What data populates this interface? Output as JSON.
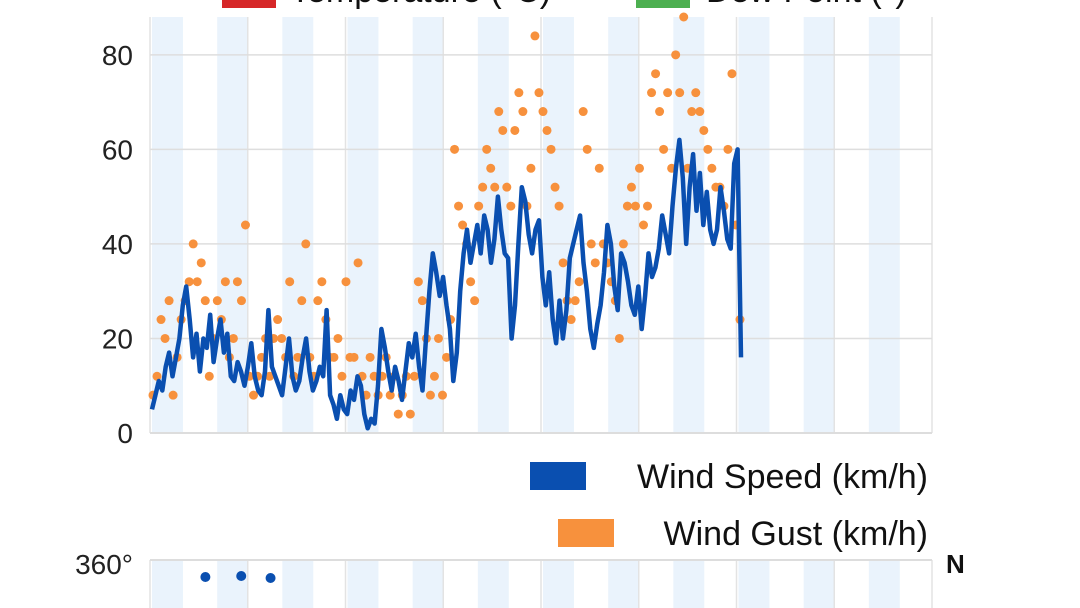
{
  "top_legend": [
    {
      "label": "Temperature (°C)",
      "color": "#d62728"
    },
    {
      "label": "Dew Point (°)",
      "color": "#4caf50"
    }
  ],
  "chart_data": [
    {
      "type": "line",
      "title": "",
      "xlabel": "",
      "ylabel": "",
      "ylim": [
        0,
        88
      ],
      "yticks": [
        0,
        20,
        40,
        60,
        80
      ],
      "grid": true,
      "legend_position": "bottom-right",
      "x_period_count": 24,
      "series": [
        {
          "name": "Wind Speed (km/h)",
          "color": "#0a4fb0",
          "style": "line",
          "values": [
            5,
            8,
            11,
            9,
            14,
            17,
            12,
            16,
            20,
            27,
            31,
            24,
            16,
            21,
            13,
            20,
            18,
            25,
            15,
            20,
            24,
            17,
            21,
            12,
            11,
            15,
            13,
            10,
            14,
            19,
            12,
            9,
            8,
            13,
            26,
            14,
            12,
            10,
            8,
            14,
            20,
            12,
            9,
            11,
            16,
            20,
            13,
            9,
            11,
            14,
            12,
            26,
            8,
            6,
            3,
            8,
            5,
            4,
            9,
            7,
            12,
            10,
            4,
            1,
            3,
            2,
            10,
            22,
            18,
            13,
            9,
            14,
            11,
            7,
            13,
            19,
            16,
            21,
            14,
            9,
            20,
            30,
            38,
            34,
            29,
            33,
            27,
            22,
            11,
            17,
            30,
            38,
            43,
            36,
            40,
            44,
            38,
            46,
            43,
            36,
            41,
            50,
            43,
            38,
            37,
            20,
            27,
            40,
            52,
            49,
            42,
            38,
            43,
            45,
            33,
            27,
            34,
            24,
            19,
            28,
            20,
            26,
            37,
            40,
            43,
            46,
            36,
            30,
            22,
            18,
            23,
            27,
            34,
            44,
            40,
            31,
            26,
            38,
            36,
            32,
            27,
            25,
            31,
            22,
            29,
            38,
            33,
            35,
            39,
            46,
            42,
            38,
            48,
            56,
            62,
            54,
            40,
            52,
            59,
            47,
            55,
            44,
            51,
            43,
            40,
            43,
            52,
            47,
            41,
            39,
            57,
            60,
            16
          ]
        },
        {
          "name": "Wind Gust (km/h)",
          "color": "#f7913d",
          "style": "dots",
          "values": [
            8,
            12,
            24,
            20,
            28,
            8,
            16,
            24,
            28,
            32,
            40,
            32,
            36,
            28,
            12,
            20,
            28,
            24,
            32,
            16,
            20,
            32,
            28,
            44,
            12,
            8,
            12,
            16,
            20,
            12,
            20,
            24,
            20,
            16,
            32,
            12,
            16,
            28,
            40,
            16,
            12,
            28,
            32,
            24,
            16,
            16,
            20,
            12,
            32,
            16,
            16,
            36,
            12,
            8,
            16,
            12,
            8,
            12,
            16,
            8,
            12,
            4,
            8,
            12,
            4,
            12,
            32,
            28,
            20,
            8,
            12,
            20,
            8,
            16,
            24,
            60,
            48,
            44,
            40,
            32,
            28,
            48,
            52,
            60,
            56,
            52,
            68,
            64,
            52,
            48,
            64,
            72,
            68,
            48,
            56,
            84,
            72,
            68,
            64,
            60,
            52,
            48,
            36,
            28,
            24,
            28,
            32,
            68,
            60,
            40,
            36,
            56,
            40,
            36,
            32,
            28,
            20,
            40,
            48,
            52,
            48,
            56,
            44,
            48,
            72,
            76,
            68,
            60,
            72,
            56,
            80,
            72,
            88,
            56,
            68,
            72,
            68,
            64,
            60,
            56,
            52,
            52,
            48,
            60,
            76,
            44,
            24
          ]
        }
      ]
    },
    {
      "type": "scatter",
      "title": "",
      "xlabel": "",
      "ylabel": "",
      "ylim": [
        0,
        360
      ],
      "yticks": [
        "360°"
      ],
      "compass_label": "N",
      "series": [
        {
          "color": "#0a4fb0",
          "points": [
            [
              1.7,
              350
            ],
            [
              2.8,
              352
            ],
            [
              3.7,
              348
            ]
          ]
        }
      ]
    }
  ]
}
